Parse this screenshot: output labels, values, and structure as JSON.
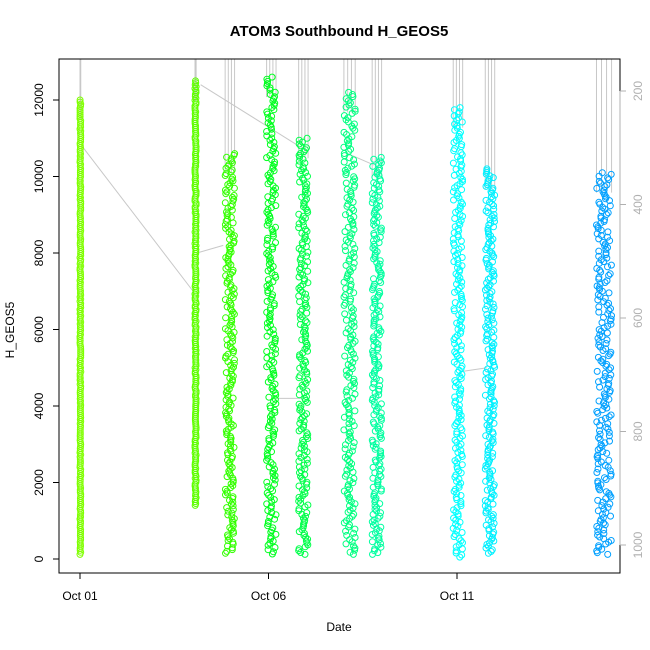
{
  "chart_data": {
    "type": "scatter",
    "title": "ATOM3 Southbound H_GEOS5",
    "xlabel": "Date",
    "ylabel": "H_GEOS5",
    "xlim": [
      0.0,
      14.5
    ],
    "ylim": [
      0,
      13000
    ],
    "x_ticks": [
      {
        "value": 0,
        "label": "Oct 01"
      },
      {
        "value": 5,
        "label": "Oct 06"
      },
      {
        "value": 10,
        "label": "Oct 11"
      }
    ],
    "y_ticks": [
      0,
      2000,
      4000,
      6000,
      8000,
      10000,
      12000
    ],
    "y2_ticks": [
      {
        "value": 200,
        "label": "200"
      },
      {
        "value": 400,
        "label": "400"
      },
      {
        "value": 600,
        "label": "600"
      },
      {
        "value": 800,
        "label": "800"
      },
      {
        "value": 1000,
        "label": "1000"
      }
    ],
    "y2lim_inverted": [
      115,
      1025
    ],
    "marker": "open-circle",
    "series": [
      {
        "color": "#7fff00",
        "x": [
          0.0,
          0.02
        ],
        "y": [
          120,
          12000
        ]
      },
      {
        "color": "#5fff00",
        "x": [
          3.05,
          3.08
        ],
        "y": [
          1400,
          12500
        ]
      },
      {
        "color": "#33ff00",
        "x": [
          3.85,
          4.1
        ],
        "y": [
          150,
          10600
        ]
      },
      {
        "color": "#00ff1f",
        "x": [
          4.95,
          5.2
        ],
        "y": [
          130,
          12600
        ]
      },
      {
        "color": "#00ff4a",
        "x": [
          5.8,
          6.05
        ],
        "y": [
          120,
          11000
        ]
      },
      {
        "color": "#00ff80",
        "x": [
          7.0,
          7.3
        ],
        "y": [
          120,
          12200
        ]
      },
      {
        "color": "#00ffa0",
        "x": [
          7.75,
          8.0
        ],
        "y": [
          120,
          10500
        ]
      },
      {
        "color": "#00ffff",
        "x": [
          9.9,
          10.15
        ],
        "y": [
          50,
          11800
        ]
      },
      {
        "color": "#00f0ff",
        "x": [
          10.75,
          11.0
        ],
        "y": [
          150,
          10200
        ]
      },
      {
        "color": "#00a0ff",
        "x": [
          13.7,
          14.1
        ],
        "y": [
          120,
          10100
        ]
      }
    ]
  }
}
